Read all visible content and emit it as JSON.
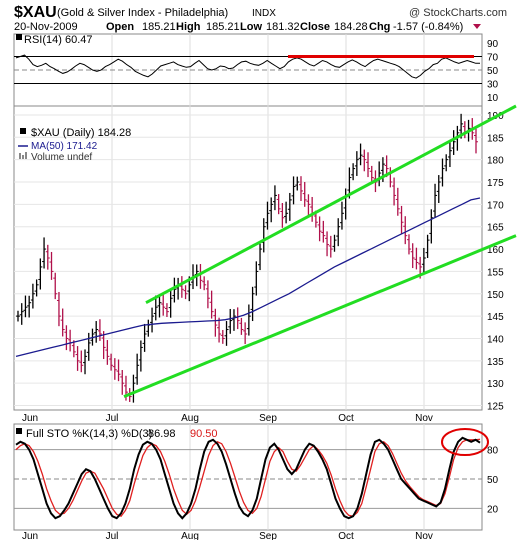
{
  "header": {
    "symbol": "$XAU",
    "name": "(Gold & Silver Index - Philadelphia)",
    "exchange": "INDX",
    "watermark": "@ StockCharts.com",
    "date": "20-Nov-2009",
    "open_label": "Open",
    "open": "185.21",
    "high_label": "High",
    "high": "185.21",
    "low_label": "Low",
    "low": "181.32",
    "close_label": "Close",
    "close": "184.28",
    "chg_label": "Chg",
    "chg": "-1.57 (-0.84%)"
  },
  "colors": {
    "price_bar_up": "#000000",
    "price_bar_down": "#b0104a",
    "ma": "#1b1b8f",
    "channel": "#22dd22",
    "rsi_threshold": "#e00000",
    "sto_k": "#000000",
    "sto_d": "#e02020",
    "annotation": "#e00000"
  },
  "chart_data": [
    {
      "type": "line",
      "panel": "rsi",
      "legend": "RSI(14) 60.47",
      "yticks": [
        10,
        30,
        50,
        70,
        90
      ],
      "ylim": [
        10,
        90
      ],
      "values": [
        68,
        70,
        72,
        66,
        58,
        55,
        57,
        60,
        55,
        52,
        48,
        45,
        47,
        51,
        56,
        60,
        58,
        54,
        50,
        48,
        50,
        55,
        58,
        62,
        66,
        63,
        58,
        54,
        48,
        45,
        42,
        40,
        44,
        50,
        56,
        58,
        60,
        62,
        58,
        56,
        54,
        55,
        60,
        64,
        58,
        52,
        50,
        52,
        56,
        55,
        52,
        53,
        58,
        62,
        63,
        60,
        58,
        57,
        60,
        64,
        60,
        56,
        52,
        55,
        62,
        66,
        68,
        66,
        62,
        58,
        56,
        60,
        64,
        62,
        58,
        55,
        54,
        58,
        62,
        65,
        62,
        58,
        55,
        60,
        64,
        66,
        64,
        62,
        60,
        58,
        55,
        50,
        45,
        40,
        38,
        42,
        48,
        52,
        58,
        60,
        66,
        68,
        65,
        62,
        60,
        62,
        64,
        62,
        60,
        60
      ],
      "threshold": {
        "value": 70,
        "from": "Sep",
        "to": "Nov"
      }
    },
    {
      "type": "bar",
      "panel": "price",
      "legend": {
        "label": "$XAU (Daily) 184.28",
        "ma": "MA(50) 171.42",
        "volume": "Volume undef"
      },
      "yticks": [
        125,
        130,
        135,
        140,
        145,
        150,
        155,
        160,
        165,
        170,
        175,
        180,
        185,
        190
      ],
      "ylim": [
        124,
        192
      ],
      "x_month_labels": [
        "Jun",
        "Jul",
        "Aug",
        "Sep",
        "Oct",
        "Nov"
      ],
      "close": [
        145,
        146,
        147,
        148,
        150,
        152,
        156,
        160,
        158,
        155,
        150,
        145,
        142,
        140,
        139,
        137,
        135,
        134,
        136,
        139,
        141,
        142,
        141,
        138,
        136,
        134,
        133,
        132,
        130,
        128,
        127,
        130,
        134,
        138,
        141,
        143,
        145,
        147,
        148,
        147,
        146,
        149,
        151,
        152,
        151,
        150,
        152,
        154,
        155,
        153,
        152,
        149,
        146,
        143,
        141,
        140,
        142,
        144,
        145,
        144,
        142,
        141,
        145,
        150,
        155,
        160,
        165,
        168,
        170,
        172,
        169,
        167,
        168,
        171,
        174,
        175,
        173,
        171,
        170,
        168,
        166,
        164,
        163,
        161,
        160,
        162,
        165,
        168,
        172,
        176,
        178,
        180,
        181,
        180,
        178,
        176,
        175,
        177,
        179,
        178,
        175,
        172,
        169,
        166,
        163,
        160,
        158,
        157,
        156,
        158,
        162,
        167,
        172,
        175,
        178,
        180,
        182,
        184,
        186,
        188,
        186,
        187,
        186,
        184
      ],
      "ma50": [
        136,
        136.5,
        137,
        137.5,
        138,
        138.5,
        139,
        139.5,
        140,
        140.5,
        141,
        141.5,
        142,
        142.5,
        143,
        143.2,
        143.4,
        143.5,
        143.6,
        143.7,
        143.8,
        143.9,
        144,
        144.2,
        144.6,
        145.2,
        146,
        147,
        148,
        149,
        150,
        151.2,
        152.4,
        153.6,
        154.8,
        156,
        157,
        158,
        159,
        160,
        161,
        162,
        163,
        164,
        165,
        166,
        167,
        168,
        169,
        170,
        171,
        171.42
      ],
      "channel_upper": {
        "from": [
          148.0,
          "Aug"
        ],
        "to": [
          192.0,
          "Nov"
        ]
      },
      "channel_lower": {
        "from": [
          127.0,
          "Jul"
        ],
        "to": [
          163.0,
          "Nov"
        ]
      }
    },
    {
      "type": "line",
      "panel": "stochastics",
      "legend": {
        "label": "Full STO %K(14,3) %D(3)",
        "k": "86.98",
        "d": "90.50"
      },
      "yticks": [
        20,
        50,
        80
      ],
      "ylim": [
        0,
        100
      ],
      "k": [
        85,
        88,
        86,
        80,
        70,
        55,
        40,
        25,
        15,
        10,
        12,
        18,
        25,
        35,
        45,
        55,
        60,
        58,
        50,
        40,
        30,
        20,
        12,
        10,
        15,
        25,
        40,
        60,
        75,
        85,
        88,
        86,
        80,
        70,
        55,
        40,
        25,
        15,
        10,
        15,
        25,
        40,
        60,
        78,
        88,
        90,
        86,
        78,
        65,
        50,
        35,
        22,
        15,
        12,
        18,
        30,
        50,
        70,
        82,
        86,
        80,
        70,
        60,
        55,
        60,
        70,
        80,
        86,
        84,
        78,
        70,
        60,
        45,
        30,
        20,
        12,
        10,
        12,
        20,
        35,
        55,
        75,
        88,
        90,
        86,
        80,
        70,
        60,
        50,
        45,
        40,
        35,
        30,
        28,
        26,
        24,
        22,
        26,
        40,
        60,
        78,
        88,
        92,
        90,
        88,
        90,
        87
      ],
      "d": [
        80,
        84,
        86,
        84,
        78,
        68,
        55,
        40,
        28,
        18,
        14,
        15,
        20,
        28,
        38,
        48,
        56,
        58,
        56,
        48,
        40,
        30,
        20,
        14,
        12,
        18,
        28,
        45,
        60,
        74,
        82,
        86,
        84,
        78,
        68,
        55,
        40,
        28,
        18,
        14,
        18,
        28,
        42,
        58,
        74,
        84,
        88,
        86,
        78,
        66,
        52,
        38,
        26,
        18,
        15,
        20,
        32,
        50,
        68,
        78,
        82,
        78,
        68,
        60,
        58,
        64,
        72,
        80,
        84,
        80,
        74,
        66,
        54,
        40,
        28,
        18,
        13,
        12,
        16,
        25,
        42,
        60,
        78,
        86,
        88,
        84,
        76,
        66,
        56,
        48,
        42,
        37,
        32,
        29,
        27,
        25,
        23,
        25,
        35,
        52,
        70,
        82,
        88,
        90,
        90,
        90,
        90.5
      ]
    }
  ]
}
